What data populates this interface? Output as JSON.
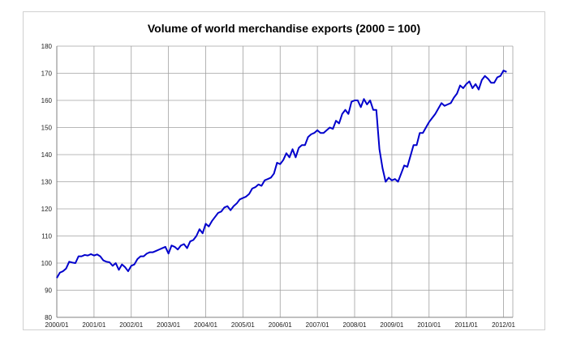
{
  "chart_data": {
    "type": "line",
    "title": "Volume of world merchandise exports (2000 = 100)",
    "xlabel": "",
    "ylabel": "",
    "ylim": [
      80,
      180
    ],
    "yticks": [
      80,
      90,
      100,
      110,
      120,
      130,
      140,
      150,
      160,
      170,
      180
    ],
    "xticks": [
      "2000/01",
      "2001/01",
      "2002/01",
      "2003/01",
      "2004/01",
      "2005/01",
      "2006/01",
      "2007/01",
      "2008/01",
      "2009/01",
      "2010/01",
      "2011/01",
      "2012/01"
    ],
    "grid": true,
    "legend": "none",
    "line_color": "#0000cc",
    "grid_color": "#a0a0a0",
    "series": [
      {
        "name": "Volume of world merchandise exports",
        "start": "2000/01",
        "frequency": "monthly",
        "values": [
          94.5,
          96.5,
          97.0,
          98.0,
          100.5,
          100.2,
          100.0,
          102.5,
          102.5,
          103.0,
          102.8,
          103.3,
          102.8,
          103.2,
          102.5,
          101.0,
          100.5,
          100.3,
          99.0,
          100.0,
          97.5,
          99.5,
          98.5,
          97.0,
          99.0,
          99.5,
          101.5,
          102.5,
          102.5,
          103.5,
          104.0,
          104.0,
          104.5,
          105.0,
          105.5,
          106.0,
          103.5,
          106.5,
          106.0,
          105.0,
          106.5,
          107.0,
          105.5,
          108.0,
          108.5,
          110.0,
          112.5,
          111.0,
          114.5,
          113.5,
          115.5,
          117.0,
          118.5,
          119.0,
          120.5,
          121.0,
          119.5,
          121.0,
          122.0,
          123.5,
          124.0,
          124.5,
          125.5,
          127.5,
          128.0,
          129.0,
          128.5,
          130.5,
          131.0,
          131.5,
          133.0,
          137.0,
          136.5,
          138.0,
          140.5,
          139.0,
          142.0,
          139.0,
          142.5,
          143.5,
          143.5,
          146.5,
          147.5,
          148.0,
          149.0,
          148.0,
          148.0,
          149.0,
          150.0,
          149.5,
          152.5,
          151.5,
          155.0,
          156.5,
          155.0,
          159.5,
          160.0,
          160.0,
          157.5,
          160.5,
          158.5,
          160.0,
          156.5,
          156.5,
          142.0,
          135.0,
          130.0,
          131.5,
          130.5,
          131.0,
          130.0,
          133.0,
          136.0,
          135.5,
          139.5,
          143.5,
          143.5,
          148.0,
          148.0,
          150.0,
          152.0,
          153.5,
          155.0,
          157.0,
          159.0,
          158.0,
          158.5,
          159.0,
          161.0,
          162.5,
          165.5,
          164.5,
          166.0,
          167.0,
          164.5,
          166.0,
          164.0,
          167.5,
          169.0,
          168.0,
          166.5,
          166.5,
          168.5,
          169.0,
          171.0,
          170.5
        ]
      }
    ]
  }
}
